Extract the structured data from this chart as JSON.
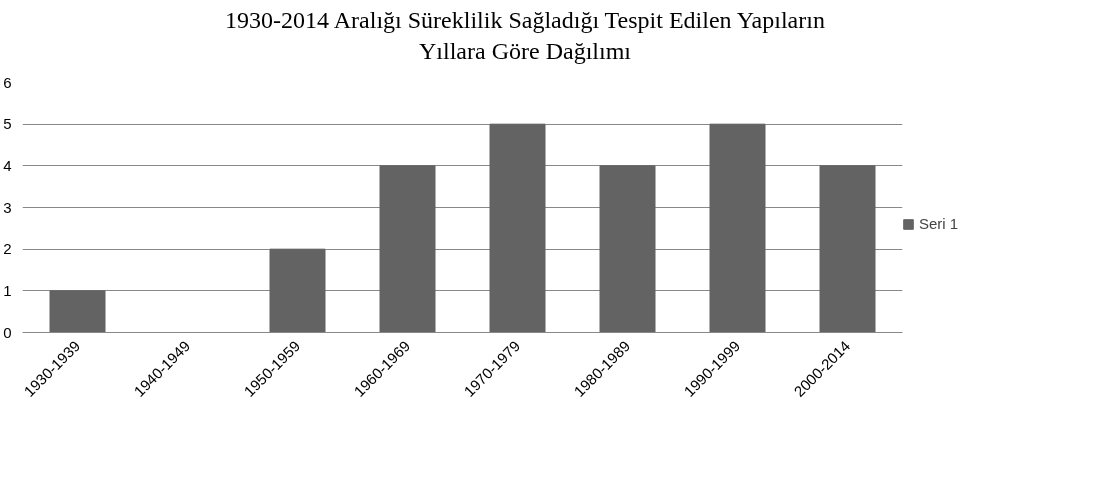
{
  "chart_data": {
    "type": "bar",
    "title": "1930-2014 Aralığı Süreklilik Sağladığı Tespit Edilen Yapıların\nYıllara Göre Dağılımı",
    "categories": [
      "1930-1939",
      "1940-1949",
      "1950-1959",
      "1960-1969",
      "1970-1979",
      "1980-1989",
      "1990-1999",
      "2000-2014"
    ],
    "series": [
      {
        "name": "Seri 1",
        "color": "#636363",
        "values": [
          1,
          0,
          2,
          4,
          5,
          4,
          5,
          4
        ]
      }
    ],
    "ylim": [
      0,
      6
    ],
    "yticks": [
      0,
      1,
      2,
      3,
      4,
      5,
      6
    ],
    "grid": "y",
    "legend": "right"
  }
}
